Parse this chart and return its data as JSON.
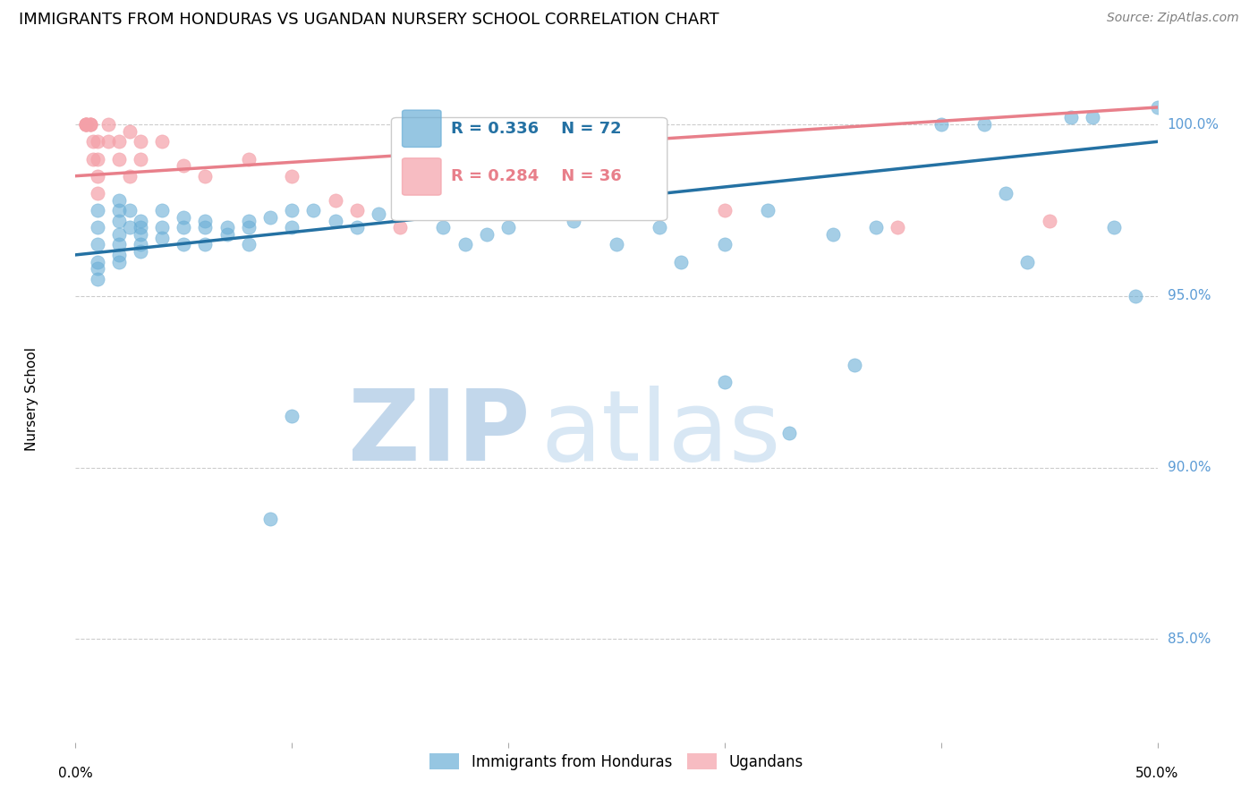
{
  "title": "IMMIGRANTS FROM HONDURAS VS UGANDAN NURSERY SCHOOL CORRELATION CHART",
  "source": "Source: ZipAtlas.com",
  "ylabel": "Nursery School",
  "xlim": [
    0.0,
    0.5
  ],
  "ylim": [
    82.0,
    102.0
  ],
  "blue_color": "#6aaed6",
  "pink_color": "#f4a0a8",
  "blue_line_color": "#2471a3",
  "pink_line_color": "#e87f8a",
  "grid_color": "#cccccc",
  "watermark_zip": "ZIP",
  "watermark_atlas": "atlas",
  "legend_blue_R": "0.336",
  "legend_blue_N": "72",
  "legend_pink_R": "0.284",
  "legend_pink_N": "36",
  "blue_x": [
    0.01,
    0.01,
    0.01,
    0.01,
    0.01,
    0.01,
    0.02,
    0.02,
    0.02,
    0.02,
    0.02,
    0.02,
    0.02,
    0.025,
    0.025,
    0.03,
    0.03,
    0.03,
    0.03,
    0.03,
    0.04,
    0.04,
    0.04,
    0.05,
    0.05,
    0.05,
    0.06,
    0.06,
    0.06,
    0.07,
    0.07,
    0.08,
    0.08,
    0.08,
    0.09,
    0.1,
    0.1,
    0.11,
    0.12,
    0.13,
    0.14,
    0.15,
    0.15,
    0.16,
    0.17,
    0.18,
    0.19,
    0.2,
    0.22,
    0.23,
    0.24,
    0.25,
    0.27,
    0.28,
    0.3,
    0.32,
    0.35,
    0.37,
    0.4,
    0.42,
    0.43,
    0.44,
    0.46,
    0.47,
    0.48,
    0.49,
    0.5,
    0.3,
    0.33,
    0.36,
    0.1,
    0.09
  ],
  "blue_y": [
    97.5,
    97.0,
    96.5,
    96.0,
    95.8,
    95.5,
    97.8,
    97.5,
    97.2,
    96.8,
    96.5,
    96.2,
    96.0,
    97.5,
    97.0,
    97.2,
    97.0,
    96.8,
    96.5,
    96.3,
    97.5,
    97.0,
    96.7,
    97.3,
    97.0,
    96.5,
    97.2,
    97.0,
    96.5,
    97.0,
    96.8,
    97.2,
    97.0,
    96.5,
    97.3,
    97.5,
    97.0,
    97.5,
    97.2,
    97.0,
    97.4,
    98.5,
    97.5,
    97.5,
    97.0,
    96.5,
    96.8,
    97.0,
    97.5,
    97.2,
    97.8,
    96.5,
    97.0,
    96.0,
    96.5,
    97.5,
    96.8,
    97.0,
    100.0,
    100.0,
    98.0,
    96.0,
    100.2,
    100.2,
    97.0,
    95.0,
    100.5,
    92.5,
    91.0,
    93.0,
    91.5,
    88.5
  ],
  "pink_x": [
    0.005,
    0.005,
    0.005,
    0.005,
    0.007,
    0.007,
    0.007,
    0.008,
    0.008,
    0.01,
    0.01,
    0.01,
    0.01,
    0.015,
    0.015,
    0.02,
    0.02,
    0.025,
    0.025,
    0.03,
    0.03,
    0.04,
    0.05,
    0.06,
    0.08,
    0.1,
    0.12,
    0.13,
    0.15,
    0.17,
    0.19,
    0.22,
    0.25,
    0.3,
    0.38,
    0.45
  ],
  "pink_y": [
    100.0,
    100.0,
    100.0,
    100.0,
    100.0,
    100.0,
    100.0,
    99.5,
    99.0,
    99.5,
    99.0,
    98.5,
    98.0,
    100.0,
    99.5,
    99.5,
    99.0,
    99.8,
    98.5,
    99.5,
    99.0,
    99.5,
    98.8,
    98.5,
    99.0,
    98.5,
    97.8,
    97.5,
    97.0,
    97.5,
    97.5,
    99.0,
    97.5,
    97.5,
    97.0,
    97.2
  ],
  "blue_trendline_x": [
    0.0,
    0.5
  ],
  "blue_trendline_y": [
    96.2,
    99.5
  ],
  "pink_trendline_x": [
    0.0,
    0.5
  ],
  "pink_trendline_y": [
    98.5,
    100.5
  ],
  "ytick_vals": [
    85.0,
    90.0,
    95.0,
    100.0
  ],
  "ytick_labels": [
    "85.0%",
    "90.0%",
    "95.0%",
    "100.0%"
  ]
}
